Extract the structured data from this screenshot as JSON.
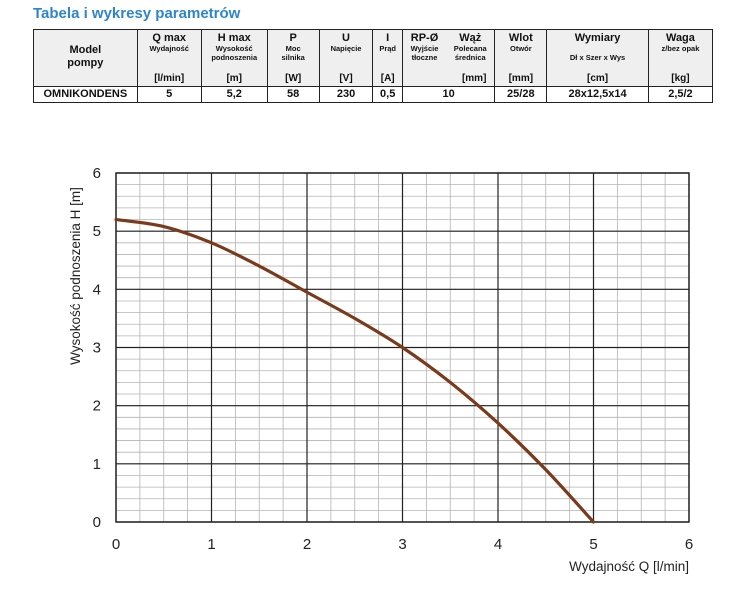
{
  "page_title": "Tabela i wykresy parametrów",
  "table": {
    "header": {
      "model": {
        "main": "Model",
        "main2": "pompy"
      },
      "qmax": {
        "main": "Q max",
        "sub": "Wydajność",
        "unit": "[l/min]"
      },
      "hmax": {
        "main": "H max",
        "sub": "Wysokość",
        "sub2": "podnoszenia",
        "unit": "[m]"
      },
      "p": {
        "main": "P",
        "sub": "Moc",
        "sub2": "silnika",
        "unit": "[W]"
      },
      "u": {
        "main": "U",
        "sub": "Napięcie",
        "unit": "[V]"
      },
      "i": {
        "main": "I",
        "sub": "Prąd",
        "unit": "[A]"
      },
      "rp": {
        "main": "RP-Ø",
        "sub": "Wyjście",
        "sub2": "tłoczne"
      },
      "waz": {
        "main": "Wąż",
        "sub": "Polecana",
        "sub2": "średnica",
        "unit": "[mm]"
      },
      "wlot": {
        "main": "Wlot",
        "sub": "Otwór",
        "unit": "[mm]"
      },
      "wymiary": {
        "main": "Wymiary",
        "sub": "Dł x Szer x Wys",
        "unit": "[cm]"
      },
      "waga": {
        "main": "Waga",
        "sub": "z/bez opak",
        "unit": "[kg]"
      }
    },
    "row": {
      "model": "OMNIKONDENS",
      "qmax": "5",
      "hmax": "5,2",
      "p": "58",
      "u": "230",
      "i": "0,5",
      "hose": "10",
      "inlet": "25/28",
      "dims": "28x12,5x14",
      "weight": "2,5/2"
    }
  },
  "chart_data": {
    "type": "line",
    "xlabel": "Wydajność Q [l/min]",
    "ylabel": "Wysokość podnoszenia H [m]",
    "xlim": [
      0,
      6
    ],
    "ylim": [
      0,
      6
    ],
    "x_ticks": [
      "0",
      "1",
      "2",
      "3",
      "4",
      "5",
      "6"
    ],
    "y_ticks": [
      "0",
      "1",
      "2",
      "3",
      "4",
      "5",
      "6"
    ],
    "grid": true,
    "minor_grid": {
      "x_step": 0.25,
      "y_step": 0.2
    },
    "series": [
      {
        "color": "#7a3b1c",
        "x": [
          0,
          0.5,
          1,
          1.5,
          2,
          2.5,
          3,
          3.5,
          4,
          4.5,
          5
        ],
        "y": [
          5.2,
          5.08,
          4.8,
          4.4,
          3.95,
          3.5,
          3.0,
          2.4,
          1.7,
          0.9,
          0
        ]
      }
    ],
    "grid_colors": {
      "major": "#222222",
      "minor": "#b4b4b4"
    }
  }
}
